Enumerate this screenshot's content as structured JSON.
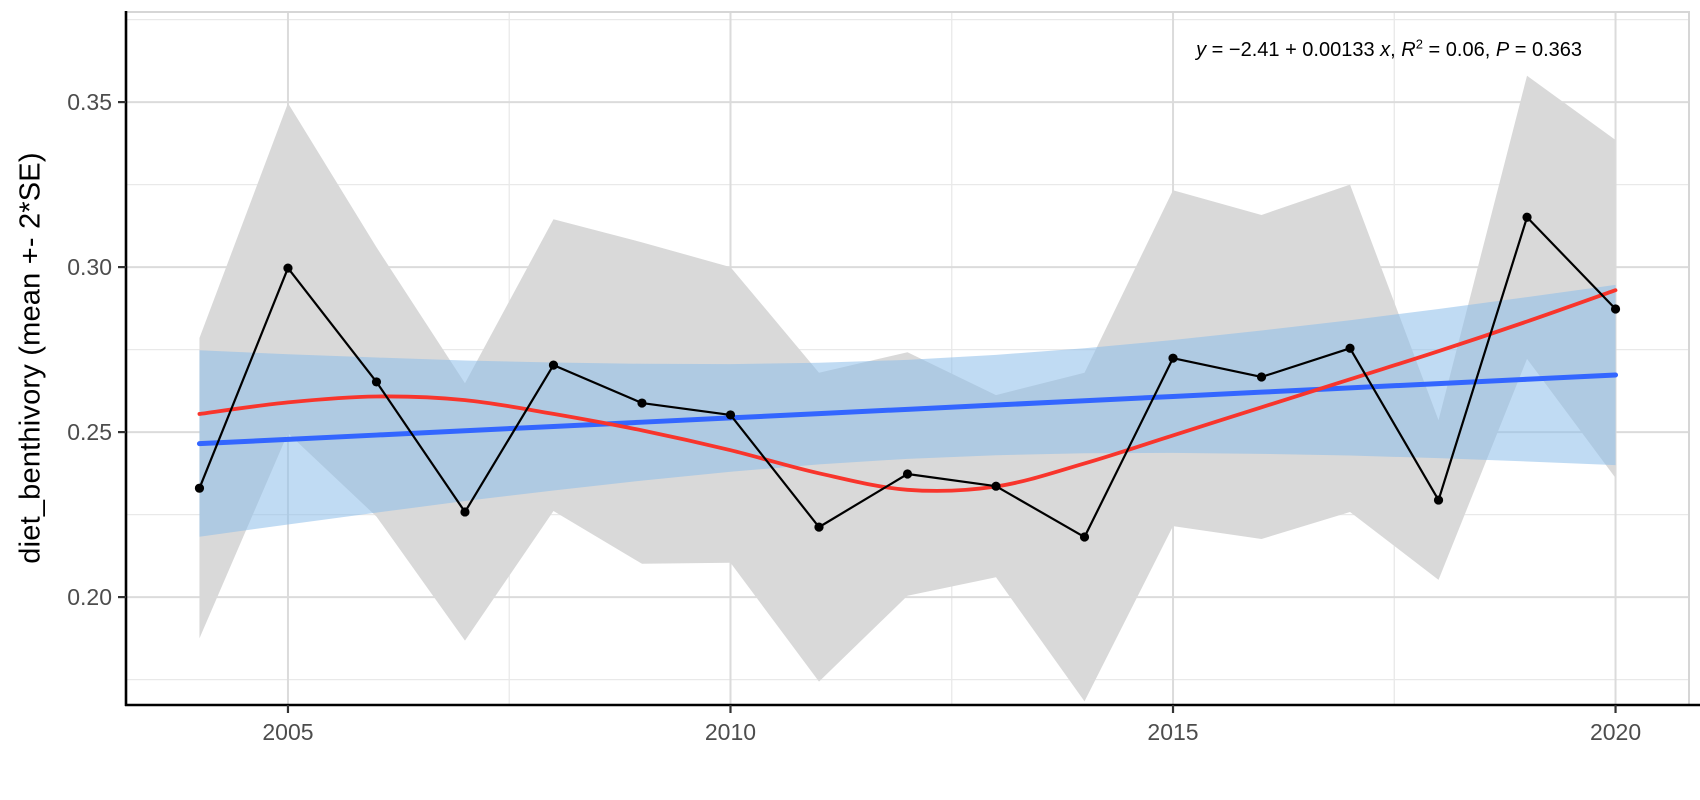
{
  "figure": {
    "background": "#ffffff",
    "colors": {
      "se_ribbon": "#D9D9D9",
      "ci_ribbon": "rgba(140,190,233,0.55)",
      "lm_line": "#3366FF",
      "loess_line": "#F8352C",
      "mean_line": "#000000",
      "point": "#000000",
      "grid_major": "#DBDBDB",
      "grid_minor": "#E9E9E9",
      "panel_border": "#D6D6D6",
      "axis_line": "#000000",
      "tick_mark": "#333333",
      "tick_label": "#4D4D4D"
    }
  },
  "annotation": {
    "full_text": "y = −2.41 + 0.00133 x, R2 = 0.06, P = 0.363",
    "parts": [
      {
        "text": "y"
      },
      {
        "text": " = −2.41 + 0.00133 "
      },
      {
        "text": "x"
      },
      {
        "text": ", "
      },
      {
        "text": "R"
      },
      {
        "text": "2"
      },
      {
        "text": " = 0.06, "
      },
      {
        "text": "P"
      },
      {
        "text": " = 0.363"
      }
    ]
  },
  "chart_data": {
    "type": "line",
    "title": "",
    "xlabel": "",
    "ylabel": "diet_benthivory (mean +- 2*SE)",
    "x_axis": {
      "domain": [
        2003.17,
        2020.83
      ],
      "ticks": [
        2005,
        2010,
        2015,
        2020
      ],
      "tick_labels": [
        "2005",
        "2010",
        "2015",
        "2020"
      ],
      "minor_ticks": [
        2007.5,
        2012.5,
        2017.5
      ]
    },
    "y_axis": {
      "domain": [
        0.1673,
        0.3773
      ],
      "ticks": [
        0.2,
        0.25,
        0.3,
        0.35
      ],
      "tick_labels": [
        "0.20",
        "0.25",
        "0.30",
        "0.35"
      ],
      "minor_ticks": [
        0.175,
        0.225,
        0.275,
        0.325,
        0.375
      ]
    },
    "grid": "major+minor",
    "legend": "none",
    "x": [
      2004,
      2005,
      2006,
      2007,
      2008,
      2009,
      2010,
      2011,
      2012,
      2013,
      2014,
      2015,
      2016,
      2017,
      2018,
      2019,
      2020
    ],
    "series": [
      {
        "name": "mean",
        "role": "mean-line-points",
        "values": [
          0.233,
          0.2997,
          0.2652,
          0.2258,
          0.2703,
          0.2588,
          0.2552,
          0.2212,
          0.2373,
          0.2336,
          0.2182,
          0.2724,
          0.2667,
          0.2754,
          0.2294,
          0.3151,
          0.2873
        ]
      },
      {
        "name": "se_upper",
        "role": "se-ribbon-upper",
        "values": [
          0.2785,
          0.3497,
          0.306,
          0.2648,
          0.3145,
          0.3075,
          0.3,
          0.268,
          0.2742,
          0.2612,
          0.268,
          0.3233,
          0.3158,
          0.325,
          0.2536,
          0.358,
          0.3385
        ]
      },
      {
        "name": "se_lower",
        "role": "se-ribbon-lower",
        "values": [
          0.1875,
          0.2497,
          0.2244,
          0.1868,
          0.2261,
          0.2101,
          0.2104,
          0.1744,
          0.2004,
          0.206,
          0.1684,
          0.2215,
          0.2176,
          0.2258,
          0.2052,
          0.2722,
          0.2361
        ]
      },
      {
        "name": "lm_fit",
        "role": "regression-line",
        "values": [
          0.2465,
          0.2478,
          0.2491,
          0.2504,
          0.2517,
          0.253,
          0.2543,
          0.2556,
          0.2569,
          0.2582,
          0.2595,
          0.2608,
          0.2621,
          0.2634,
          0.2647,
          0.266,
          0.2673
        ]
      },
      {
        "name": "lm_ci_upper",
        "role": "regression-ci-upper",
        "values": [
          0.2748,
          0.2736,
          0.2726,
          0.2717,
          0.2711,
          0.2707,
          0.2706,
          0.271,
          0.2719,
          0.2734,
          0.2754,
          0.2779,
          0.2808,
          0.2839,
          0.2873,
          0.2909,
          0.2946
        ]
      },
      {
        "name": "lm_ci_lower",
        "role": "regression-ci-lower",
        "values": [
          0.2183,
          0.222,
          0.2256,
          0.2291,
          0.2323,
          0.2353,
          0.238,
          0.2402,
          0.2419,
          0.243,
          0.2436,
          0.2437,
          0.2434,
          0.2429,
          0.2421,
          0.2411,
          0.24
        ]
      },
      {
        "name": "loess_fit",
        "role": "loess-line",
        "values": [
          0.2555,
          0.259,
          0.2608,
          0.2597,
          0.2555,
          0.2505,
          0.2445,
          0.2375,
          0.2325,
          0.2335,
          0.2405,
          0.249,
          0.2575,
          0.266,
          0.2745,
          0.2835,
          0.293
        ]
      }
    ]
  }
}
